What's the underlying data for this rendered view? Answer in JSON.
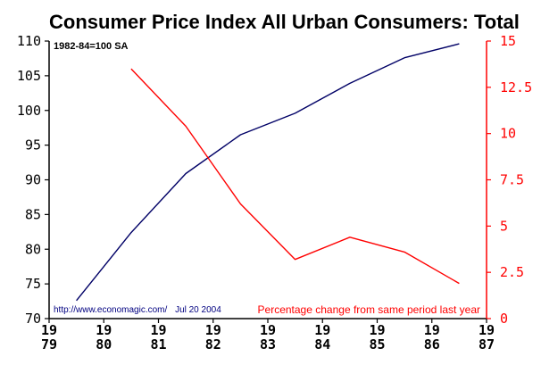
{
  "chart_data": {
    "type": "line",
    "title": "Consumer Price Index All Urban Consumers: Total",
    "note": "1982-84=100 SA",
    "source": "http://www.economagic.com/",
    "date": "Jul 20 2004",
    "secondary_label": "Percentage change from same period last year",
    "x": {
      "min": 1979,
      "max": 1987,
      "ticks": [
        {
          "year": 1979,
          "top": "19",
          "bottom": "79"
        },
        {
          "year": 1980,
          "top": "19",
          "bottom": "80"
        },
        {
          "year": 1981,
          "top": "19",
          "bottom": "81"
        },
        {
          "year": 1982,
          "top": "19",
          "bottom": "82"
        },
        {
          "year": 1983,
          "top": "19",
          "bottom": "83"
        },
        {
          "year": 1984,
          "top": "19",
          "bottom": "84"
        },
        {
          "year": 1985,
          "top": "19",
          "bottom": "85"
        },
        {
          "year": 1986,
          "top": "19",
          "bottom": "86"
        },
        {
          "year": 1987,
          "top": "19",
          "bottom": "87"
        }
      ]
    },
    "y_left": {
      "min": 70,
      "max": 110,
      "ticks": [
        "70",
        "75",
        "80",
        "85",
        "90",
        "95",
        "100",
        "105",
        "110"
      ],
      "tick_values": [
        70,
        75,
        80,
        85,
        90,
        95,
        100,
        105,
        110
      ]
    },
    "y_right": {
      "min": 0,
      "max": 15,
      "ticks": [
        "0",
        "2.5",
        "5",
        "7.5",
        "10",
        "12.5",
        "15"
      ],
      "tick_values": [
        0,
        2.5,
        5,
        7.5,
        10,
        12.5,
        15
      ]
    },
    "series": [
      {
        "axis": "left",
        "color": "#000066",
        "points": [
          {
            "x": 1979.5,
            "y": 72.6
          },
          {
            "x": 1980.5,
            "y": 82.4
          },
          {
            "x": 1981.5,
            "y": 90.9
          },
          {
            "x": 1982.5,
            "y": 96.5
          },
          {
            "x": 1983.5,
            "y": 99.6
          },
          {
            "x": 1984.5,
            "y": 103.9
          },
          {
            "x": 1985.5,
            "y": 107.6
          },
          {
            "x": 1986.5,
            "y": 109.6
          }
        ]
      },
      {
        "name": "Percentage change from same period last year",
        "axis": "right",
        "color": "#ff0000",
        "points": [
          {
            "x": 1980.5,
            "y": 13.5
          },
          {
            "x": 1981.5,
            "y": 10.4
          },
          {
            "x": 1982.5,
            "y": 6.2
          },
          {
            "x": 1983.5,
            "y": 3.2
          },
          {
            "x": 1984.5,
            "y": 4.4
          },
          {
            "x": 1985.5,
            "y": 3.6
          },
          {
            "x": 1986.5,
            "y": 1.9
          }
        ]
      }
    ],
    "colors": {
      "axis": "#000000",
      "right_axis": "#ff0000",
      "source_text": "#000080",
      "secondary_label_text": "#ff0000"
    }
  }
}
